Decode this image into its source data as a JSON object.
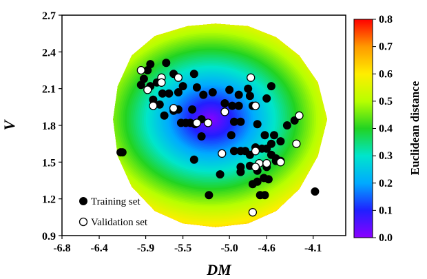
{
  "chart_data": {
    "type": "scatter",
    "xlabel": "DM",
    "ylabel": "V",
    "xlim": [
      -6.8,
      -3.75
    ],
    "ylim": [
      0.9,
      2.7
    ],
    "x_ticks": [
      -6.8,
      -6.4,
      -5.9,
      -5.5,
      -5.0,
      -4.6,
      -4.1
    ],
    "x_tick_labels": [
      "-6.8",
      "-6.4",
      "-5.9",
      "-5.5",
      "-5.0",
      "-4.6",
      "-4.1"
    ],
    "y_ticks": [
      0.9,
      1.2,
      1.5,
      1.8,
      2.1,
      2.4,
      2.7
    ],
    "y_tick_labels": [
      "0.9",
      "1.2",
      "1.5",
      "1.8",
      "2.1",
      "2.4",
      "2.7"
    ],
    "grid": false,
    "legend_position": "bottom-left",
    "heatmap": {
      "center": [
        -5.2,
        1.85
      ],
      "value_range": [
        0.0,
        0.8
      ],
      "domain_boundary": [
        [
          -6.25,
          1.85
        ],
        [
          -6.2,
          2.12
        ],
        [
          -6.05,
          2.37
        ],
        [
          -5.8,
          2.53
        ],
        [
          -5.45,
          2.61
        ],
        [
          -5.15,
          2.63
        ],
        [
          -4.8,
          2.61
        ],
        [
          -4.5,
          2.52
        ],
        [
          -4.25,
          2.37
        ],
        [
          -4.05,
          2.15
        ],
        [
          -3.95,
          1.85
        ],
        [
          -4.05,
          1.55
        ],
        [
          -4.25,
          1.28
        ],
        [
          -4.5,
          1.1
        ],
        [
          -4.8,
          1.0
        ],
        [
          -5.15,
          0.97
        ],
        [
          -5.5,
          1.0
        ],
        [
          -5.8,
          1.1
        ],
        [
          -6.05,
          1.3
        ],
        [
          -6.2,
          1.55
        ]
      ]
    },
    "colorbar": {
      "label": "Euclidean distance",
      "range": [
        0.0,
        0.8
      ],
      "ticks": [
        "0.0",
        "0.1",
        "0.2",
        "0.3",
        "0.4",
        "0.5",
        "0.6",
        "0.7",
        "0.8"
      ],
      "colors": [
        "#8b00ff",
        "#2020ff",
        "#00aaff",
        "#00e5cc",
        "#22d322",
        "#b8ff00",
        "#ffee00",
        "#ff9900",
        "#ff0000"
      ]
    },
    "series": [
      {
        "name": "Training set",
        "marker": "filled-circle",
        "color": "#000000",
        "points": [
          [
            -5.85,
            2.3
          ],
          [
            -5.88,
            2.25
          ],
          [
            -5.92,
            2.18
          ],
          [
            -5.95,
            2.13
          ],
          [
            -5.85,
            2.12
          ],
          [
            -5.78,
            2.15
          ],
          [
            -5.72,
            2.06
          ],
          [
            -5.65,
            2.06
          ],
          [
            -5.6,
            2.22
          ],
          [
            -5.68,
            2.31
          ],
          [
            -5.5,
            2.12
          ],
          [
            -5.55,
            2.07
          ],
          [
            -5.38,
            2.22
          ],
          [
            -5.35,
            2.11
          ],
          [
            -5.28,
            2.05
          ],
          [
            -5.18,
            2.07
          ],
          [
            -5.82,
            2.01
          ],
          [
            -5.75,
            1.97
          ],
          [
            -5.7,
            1.88
          ],
          [
            -5.6,
            1.92
          ],
          [
            -5.55,
            1.93
          ],
          [
            -5.4,
            1.93
          ],
          [
            -5.52,
            1.82
          ],
          [
            -5.47,
            1.82
          ],
          [
            -5.42,
            1.82
          ],
          [
            -5.37,
            1.81
          ],
          [
            -5.3,
            1.85
          ],
          [
            -5.3,
            1.71
          ],
          [
            -5.38,
            1.52
          ],
          [
            -5.22,
            1.23
          ],
          [
            -5.05,
            1.98
          ],
          [
            -4.97,
            1.96
          ],
          [
            -4.9,
            1.96
          ],
          [
            -4.88,
            1.83
          ],
          [
            -4.95,
            1.83
          ],
          [
            -5.0,
            2.09
          ],
          [
            -4.9,
            2.05
          ],
          [
            -4.8,
            2.1
          ],
          [
            -4.78,
            2.04
          ],
          [
            -4.75,
            1.96
          ],
          [
            -4.7,
            1.81
          ],
          [
            -4.62,
            1.72
          ],
          [
            -4.98,
            1.72
          ],
          [
            -4.95,
            1.59
          ],
          [
            -4.88,
            1.59
          ],
          [
            -4.83,
            1.59
          ],
          [
            -4.78,
            1.56
          ],
          [
            -4.72,
            1.62
          ],
          [
            -4.65,
            1.61
          ],
          [
            -4.6,
            1.61
          ],
          [
            -4.55,
            1.56
          ],
          [
            -4.5,
            1.53
          ],
          [
            -4.45,
            1.51
          ],
          [
            -4.55,
            1.65
          ],
          [
            -4.52,
            1.72
          ],
          [
            -4.45,
            1.67
          ],
          [
            -4.38,
            1.8
          ],
          [
            -4.3,
            1.84
          ],
          [
            -4.6,
            2.02
          ],
          [
            -4.55,
            2.12
          ],
          [
            -4.5,
            1.51
          ],
          [
            -4.6,
            1.46
          ],
          [
            -4.7,
            1.43
          ],
          [
            -4.78,
            1.47
          ],
          [
            -4.88,
            1.46
          ],
          [
            -4.88,
            1.42
          ],
          [
            -5.1,
            1.4
          ],
          [
            -4.75,
            1.32
          ],
          [
            -4.7,
            1.34
          ],
          [
            -4.63,
            1.37
          ],
          [
            -4.58,
            1.36
          ],
          [
            -4.67,
            1.23
          ],
          [
            -4.62,
            1.23
          ],
          [
            -4.08,
            1.26
          ],
          [
            -6.17,
            1.58
          ],
          [
            -6.15,
            1.58
          ]
        ]
      },
      {
        "name": "Validation set",
        "marker": "open-circle",
        "color": "#000000",
        "points": [
          [
            -5.95,
            2.25
          ],
          [
            -5.73,
            2.19
          ],
          [
            -5.88,
            2.09
          ],
          [
            -5.73,
            2.15
          ],
          [
            -5.55,
            2.19
          ],
          [
            -5.82,
            1.96
          ],
          [
            -5.6,
            1.94
          ],
          [
            -5.35,
            1.82
          ],
          [
            -5.23,
            1.82
          ],
          [
            -5.05,
            1.91
          ],
          [
            -4.77,
            2.19
          ],
          [
            -4.72,
            1.96
          ],
          [
            -5.08,
            1.57
          ],
          [
            -4.72,
            1.59
          ],
          [
            -4.68,
            1.49
          ],
          [
            -4.72,
            1.46
          ],
          [
            -4.6,
            1.49
          ],
          [
            -4.45,
            1.5
          ],
          [
            -4.28,
            1.65
          ],
          [
            -4.25,
            1.88
          ],
          [
            -4.75,
            1.09
          ]
        ]
      }
    ]
  }
}
